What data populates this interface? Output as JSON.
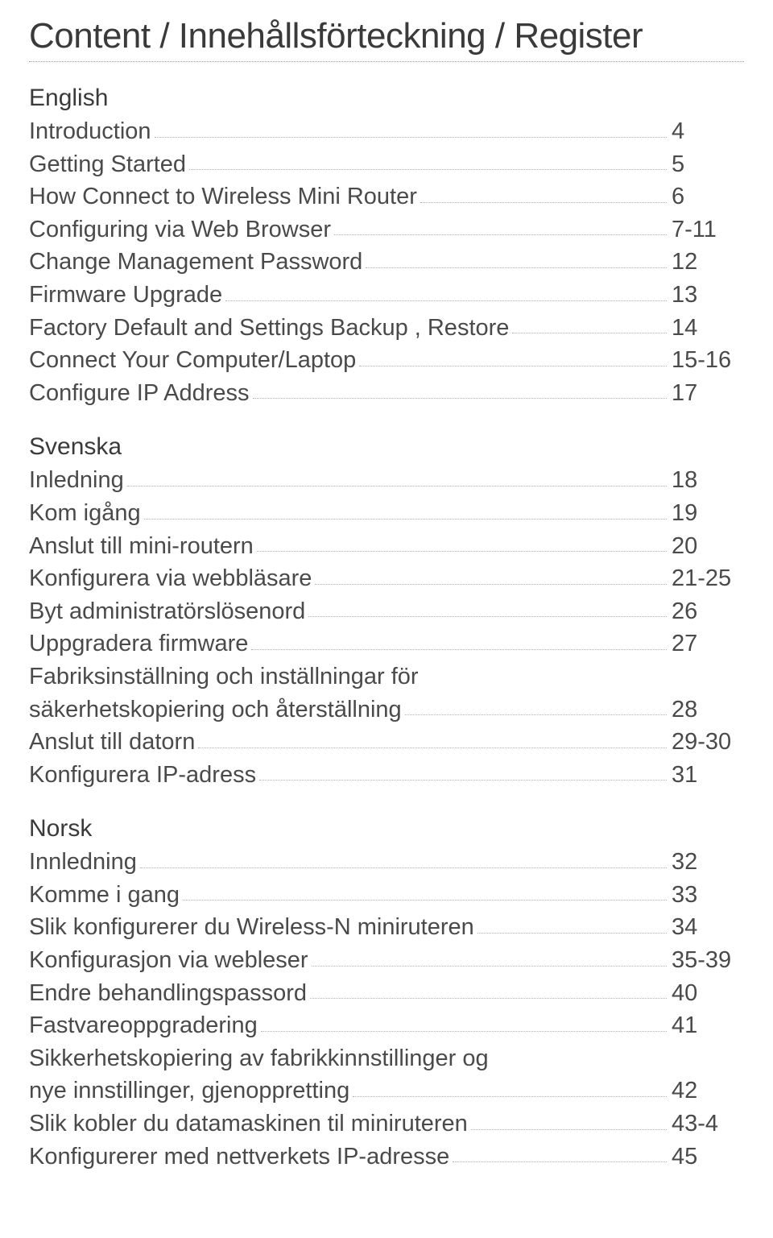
{
  "title": {
    "strong": "Content",
    "rest": " / Innehållsförteckning / Register"
  },
  "colors": {
    "text": "#4a4a4a",
    "heading": "#3a3a3a",
    "rule": "#9a9a9a",
    "leader": "#b0b0b0",
    "background": "#ffffff"
  },
  "typography": {
    "title_fontsize": 44,
    "heading_fontsize": 30,
    "entry_fontsize": 29,
    "font_family": "Helvetica Neue"
  },
  "sections": [
    {
      "heading": "English",
      "entries": [
        {
          "label": "Introduction",
          "page": "4"
        },
        {
          "label": "Getting Started",
          "page": "5"
        },
        {
          "label": "How Connect to Wireless Mini Router",
          "page": "6"
        },
        {
          "label": "Configuring via Web Browser",
          "page": "7-11"
        },
        {
          "label": "Change Management Password",
          "page": "12"
        },
        {
          "label": "Firmware Upgrade",
          "page": "13"
        },
        {
          "label": "Factory Default and Settings Backup , Restore",
          "page": "14"
        },
        {
          "label": "Connect Your Computer/Laptop",
          "page": "15-16"
        },
        {
          "label": "Configure IP Address",
          "page": "17"
        }
      ]
    },
    {
      "heading": "Svenska",
      "entries": [
        {
          "label": "Inledning",
          "page": "18"
        },
        {
          "label": "Kom igång",
          "page": "19"
        },
        {
          "label": "Anslut till mini-routern",
          "page": "20"
        },
        {
          "label": "Konfigurera via webbläsare",
          "page": "21-25"
        },
        {
          "label": "Byt administratörslösenord",
          "page": "26"
        },
        {
          "label": "Uppgradera firmware",
          "page": "27"
        },
        {
          "label": "Fabriksinställning och inställningar för",
          "label2": "säkerhetskopiering och återställning",
          "page": "28"
        },
        {
          "label": "Anslut till datorn",
          "page": "29-30"
        },
        {
          "label": "Konfigurera IP-adress",
          "page": "31"
        }
      ]
    },
    {
      "heading": "Norsk",
      "entries": [
        {
          "label": "Innledning",
          "page": "32"
        },
        {
          "label": "Komme i gang",
          "page": "33"
        },
        {
          "label": "Slik konfigurerer du Wireless-N miniruteren",
          "page": "34"
        },
        {
          "label": "Konfigurasjon via webleser",
          "page": "35-39"
        },
        {
          "label": "Endre behandlingspassord",
          "page": "40"
        },
        {
          "label": "Fastvareoppgradering",
          "page": "41"
        },
        {
          "label": "Sikkerhetskopiering av fabrikkinnstillinger og",
          "label2": "nye innstillinger, gjenoppretting",
          "page": "42"
        },
        {
          "label": "Slik kobler du datamaskinen til miniruteren",
          "page": "43-4"
        },
        {
          "label": "Konfigurerer med nettverkets IP-adresse",
          "page": "45"
        }
      ]
    }
  ]
}
